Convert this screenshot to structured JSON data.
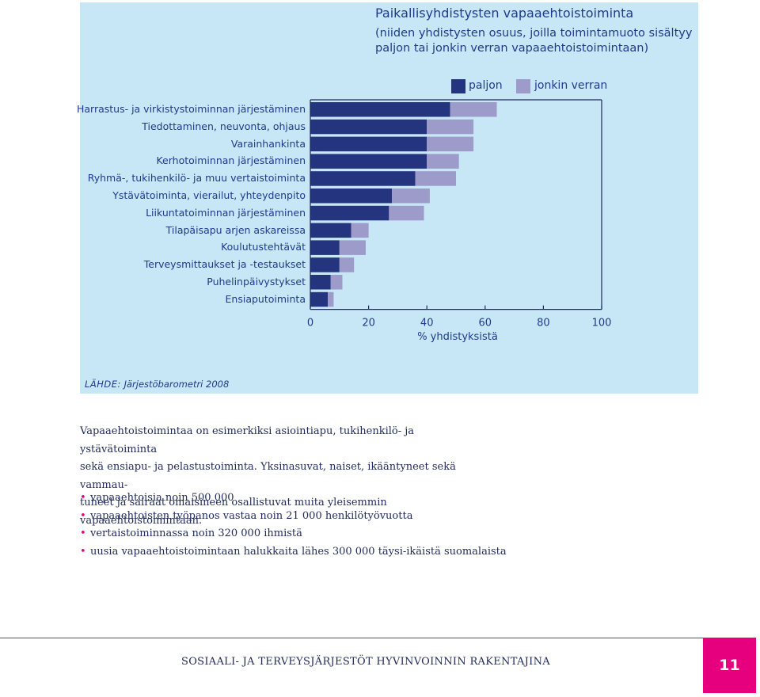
{
  "chart_data": {
    "type": "bar",
    "orientation": "horizontal",
    "stacked": true,
    "title": "Paikallisyhdistysten vapaaehtoistoiminta",
    "subtitle_lines": [
      "(niiden yhdistysten osuus, joilla toimintamuoto sisältyy",
      "paljon tai jonkin verran vapaaehtoistoimintaan)"
    ],
    "xlabel": "% yhdistyksistä",
    "ylabel": "",
    "xlim": [
      0,
      100
    ],
    "xticks": [
      0,
      20,
      40,
      60,
      80,
      100
    ],
    "xtick_labels": [
      "0",
      "20",
      "40",
      "60",
      "80",
      "100"
    ],
    "grid": false,
    "legend_position": "top-right",
    "categories": [
      "Harrastus- ja virkistystoiminnan järjestäminen",
      "Tiedottaminen, neuvonta, ohjaus",
      "Varainhankinta",
      "Kerhotoiminnan järjestäminen",
      "Ryhmä-, tukihenkilö- ja muu vertaistoiminta",
      "Ystävätoiminta, vierailut, yhteydenpito",
      "Liikuntatoiminnan järjestäminen",
      "Tilapäisapu arjen askareissa",
      "Koulutustehtävät",
      "Terveysmittaukset ja -testaukset",
      "Puhelinpäivystykset",
      "Ensiaputoiminta"
    ],
    "series": [
      {
        "name": "paljon",
        "color": "#24347f",
        "values": [
          48,
          40,
          40,
          40,
          36,
          28,
          27,
          14,
          10,
          10,
          7,
          6
        ]
      },
      {
        "name": "jonkin verran",
        "color": "#9d9bc9",
        "values": [
          16,
          16,
          16,
          11,
          14,
          13,
          12,
          6,
          9,
          5,
          4,
          2
        ]
      }
    ]
  },
  "source": {
    "label": "LÄHDE:",
    "text": "Järjestöbarometri 2008"
  },
  "body": {
    "paragraph": [
      "Vapaaehtoistoimintaa on esimerkiksi asiointiapu, tukihenkilö- ja ystävätoiminta",
      "sekä ensiapu- ja pelastustoiminta. Yksinasuvat, naiset, ikääntyneet sekä vammau-",
      "tuneet ja sairaat omaisineen osallistuvat muita yleisemmin vapaaehtoistoimintaan."
    ],
    "bullets": [
      "vapaaehtoisia noin 500 000",
      "vapaaehtoisten työpanos vastaa noin 21 000 henkilötyövuotta",
      "vertaistoiminnassa noin 320 000 ihmistä",
      "uusia vapaaehtoistoimintaan halukkaita lähes 300 000 täysi-ikäistä suomalaista"
    ],
    "bullet_symbol": "•"
  },
  "footer": {
    "running_title": "SOSIAALI- JA TERVEYSJÄRJESTÖT HYVINVOINNIN RAKENTAJINA",
    "page_number": "11"
  },
  "colors": {
    "panel_bg": "#c8e7f6",
    "text_blue": "#1e3a8a",
    "accent_magenta": "#e6007e"
  }
}
